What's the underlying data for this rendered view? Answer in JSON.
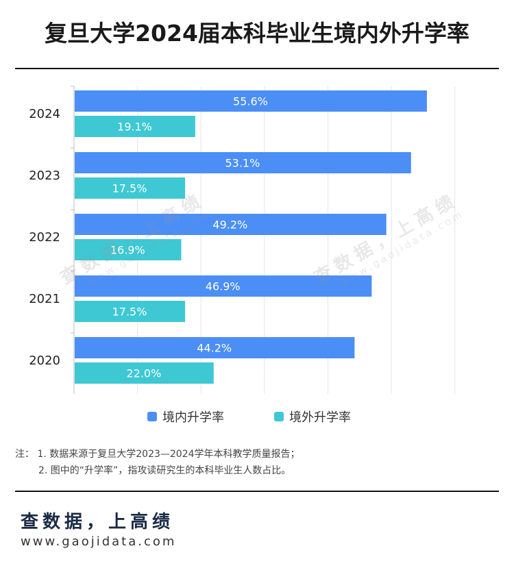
{
  "title": "复旦大学2024届本科毕业生境内外升学率",
  "chart_data": {
    "type": "bar",
    "orientation": "horizontal",
    "categories": [
      "2024",
      "2023",
      "2022",
      "2021",
      "2020"
    ],
    "series": [
      {
        "name": "境内升学率",
        "color": "#4b8ef5",
        "values": [
          55.6,
          53.1,
          49.2,
          46.9,
          44.2
        ]
      },
      {
        "name": "境外升学率",
        "color": "#3ec8d4",
        "values": [
          19.1,
          17.5,
          16.9,
          17.5,
          22.0
        ]
      }
    ],
    "value_format": "%",
    "xlim": [
      0,
      65
    ],
    "grid": true,
    "legend": "bottom"
  },
  "notes": {
    "line1": "注：  1. 数据来源于复旦大学2023—2024学年本科教学质量报告；",
    "line2": "2. 图中的“升学率”，指攻读研究生的本科毕业生人数占比。"
  },
  "brand": {
    "name": "查数据，上高绩",
    "url": "www.gaojidata.com"
  },
  "watermarks": [
    {
      "name": "查数据，上高绩",
      "url": "www.gaojidata.com"
    },
    {
      "name": "查数据，上高绩",
      "url": "www.gaojidata.com"
    }
  ]
}
